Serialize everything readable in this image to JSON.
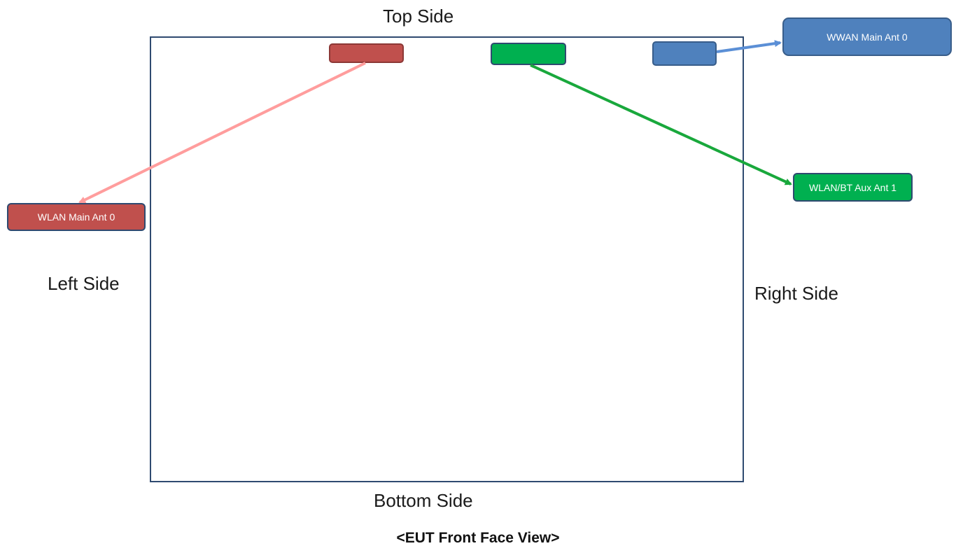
{
  "labels": {
    "top": "Top Side",
    "left": "Left Side",
    "right": "Right Side",
    "bottom": "Bottom Side"
  },
  "caption": "<EUT Front Face View>",
  "antennas": {
    "wlan_main": {
      "label": "WLAN Main Ant 0",
      "color": "#c0504d",
      "border": "#8c3836",
      "arrow_color": "#ff9d9d"
    },
    "wlan_bt_aux": {
      "label": "WLAN/BT Aux Ant 1",
      "color": "#00b050",
      "border": "#2f4a70",
      "arrow_color": "#19a83c"
    },
    "wwan_main": {
      "label": "WWAN Main Ant 0",
      "color": "#4f81bd",
      "border": "#385d8a",
      "arrow_color": "#5b8fd6"
    }
  }
}
